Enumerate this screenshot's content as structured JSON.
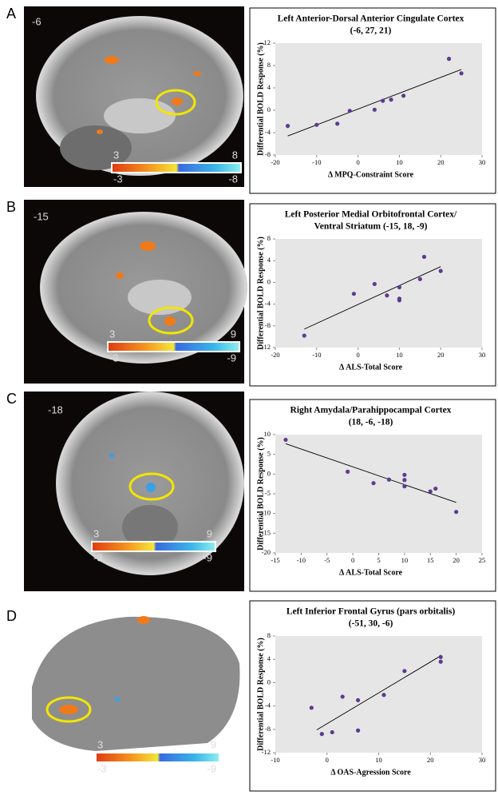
{
  "chart_data": [
    {
      "type": "scatter",
      "title": "Left Anterior-Dorsal Anterior Cingulate Cortex",
      "subtitle": "(-6, 27, 21)",
      "x_label": "Δ MPQ-Constraint Score",
      "y_label": "Differential BOLD Response (%)",
      "x": [
        -17,
        -10,
        -5,
        -2,
        4,
        6,
        8,
        11,
        22,
        25
      ],
      "values": [
        -2.8,
        -2.6,
        -2.4,
        -0.1,
        0.1,
        1.7,
        1.9,
        2.6,
        9.2,
        6.6
      ],
      "trendline": {
        "x": [
          -17,
          25
        ],
        "y": [
          -4.6,
          7.3
        ]
      },
      "color": "#5d3b8f",
      "xlim": [
        -20,
        30
      ],
      "xticks": [
        -20,
        -10,
        0,
        10,
        20,
        30
      ],
      "ylim": [
        -8,
        12
      ],
      "yticks": [
        -8,
        -4,
        0,
        4,
        8,
        12
      ]
    },
    {
      "type": "scatter",
      "title": "Left Posterior Medial Orbitofrontal Cortex/",
      "subtitle": "Ventral Striatum (-15, 18, -9)",
      "x_label": "Δ ALS-Total Score",
      "y_label": "Differential BOLD Response (%)",
      "x": [
        -13,
        -1,
        4,
        7,
        10,
        10,
        10,
        15,
        16,
        20
      ],
      "values": [
        -9.8,
        -2.1,
        -0.3,
        -2.4,
        -0.9,
        -3.0,
        -3.3,
        0.6,
        4.7,
        2.1
      ],
      "trendline": {
        "x": [
          -13,
          20
        ],
        "y": [
          -8.6,
          2.9
        ]
      },
      "color": "#5d3b8f",
      "xlim": [
        -20,
        30
      ],
      "xticks": [
        -20,
        -10,
        0,
        10,
        20,
        30
      ],
      "ylim": [
        -12,
        8
      ],
      "yticks": [
        -12,
        -8,
        -4,
        0,
        4,
        8
      ]
    },
    {
      "type": "scatter",
      "title": "Right Amydala/Parahippocampal Cortex",
      "subtitle": "(18, -6, -18)",
      "x_label": "Δ ALS-Total Score",
      "y_label": "Differential BOLD Response (%)",
      "x": [
        -13,
        -1,
        4,
        7,
        10,
        10,
        10,
        15,
        16,
        20
      ],
      "values": [
        8.7,
        0.6,
        -2.3,
        -1.4,
        -0.2,
        -1.5,
        -3.1,
        -4.4,
        -3.7,
        -9.6
      ],
      "trendline": {
        "x": [
          -13,
          20
        ],
        "y": [
          7.7,
          -7.2
        ]
      },
      "color": "#5d3b8f",
      "xlim": [
        -15,
        25
      ],
      "xticks": [
        -15,
        -10,
        -5,
        0,
        5,
        10,
        15,
        20,
        25
      ],
      "ylim": [
        -20,
        10
      ],
      "yticks": [
        -20,
        -15,
        -10,
        -5,
        0,
        5,
        10
      ]
    },
    {
      "type": "scatter",
      "title": "Left Inferior Frontal Gyrus (pars orbitalis)",
      "subtitle": "(-51, 30, -6)",
      "x_label": "Δ OAS-Agression Score",
      "y_label": "Differential BOLD Response (%)",
      "x": [
        -3,
        -1,
        1,
        3,
        6,
        6,
        11,
        15,
        22,
        22
      ],
      "values": [
        -4.3,
        -8.8,
        -8.5,
        -2.4,
        -3.0,
        -8.2,
        -2.1,
        2.0,
        4.4,
        3.6
      ],
      "trendline": {
        "x": [
          -2,
          22
        ],
        "y": [
          -8.1,
          4.6
        ]
      },
      "color": "#5d3b8f",
      "xlim": [
        -10,
        30
      ],
      "xticks": [
        -10,
        0,
        10,
        20,
        30
      ],
      "ylim": [
        -12,
        8
      ],
      "yticks": [
        -12,
        -8,
        -4,
        0,
        4,
        8
      ]
    }
  ],
  "panels": [
    {
      "label": "A",
      "slice": -6,
      "colorbar": [
        3,
        8,
        -3,
        -8
      ]
    },
    {
      "label": "B",
      "slice": -15,
      "colorbar": [
        3,
        9,
        -3,
        -9
      ]
    },
    {
      "label": "C",
      "slice": -18,
      "colorbar": [
        3,
        9,
        -3,
        -9
      ]
    },
    {
      "label": "D",
      "colorbar": [
        3,
        9,
        -3,
        -9
      ]
    }
  ]
}
